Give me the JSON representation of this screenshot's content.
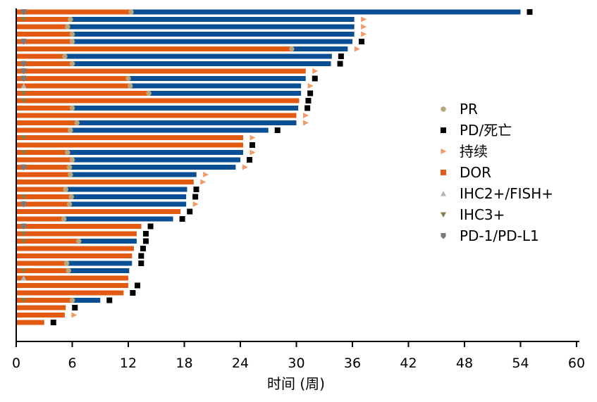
{
  "chart_data": {
    "type": "swimmer",
    "title": "",
    "xlabel": "时间 (周)",
    "ylabel": "",
    "xlim": [
      0,
      60
    ],
    "x_ticks": [
      0,
      6,
      12,
      18,
      24,
      30,
      36,
      42,
      48,
      54,
      60
    ],
    "colors": {
      "orange": "#E35A13",
      "blue": "#0A4E93",
      "pr": "#B8A57A",
      "pd": "#000000",
      "ongoing": "#F29B6A",
      "ihc2": "#B5B5B5",
      "ihc3": "#8A7D4A",
      "pd1": "#7A7A7A"
    },
    "legend": [
      {
        "key": "pr",
        "label": "PR"
      },
      {
        "key": "pd",
        "label": "PD/死亡"
      },
      {
        "key": "ongoing",
        "label": "持续"
      },
      {
        "key": "dor",
        "label": "DOR"
      },
      {
        "key": "ihc2",
        "label": "IHC2+/FISH+"
      },
      {
        "key": "ihc3",
        "label": "IHC3+"
      },
      {
        "key": "pd1",
        "label": "PD-1/PD-L1"
      }
    ],
    "patients": [
      {
        "pr": 12.3,
        "end": 54.0,
        "event": "pd",
        "marker": "pd1"
      },
      {
        "pr": 5.8,
        "end": 36.2,
        "event": "ongoing",
        "marker": "ihc3"
      },
      {
        "pr": 5.5,
        "end": 36.2,
        "event": "ongoing",
        "marker": ""
      },
      {
        "pr": 6.0,
        "end": 36.2,
        "event": "ongoing",
        "marker": ""
      },
      {
        "pr": 6.0,
        "end": 36.0,
        "event": "pd",
        "marker": "pd1"
      },
      {
        "pr": 29.5,
        "end": 35.5,
        "event": "ongoing",
        "marker": ""
      },
      {
        "pr": 5.2,
        "end": 33.8,
        "event": "pd",
        "marker": ""
      },
      {
        "pr": 6.0,
        "end": 33.7,
        "event": "pd",
        "marker": "pd1"
      },
      {
        "pr": 31.0,
        "end": 31.0,
        "event": "ongoing",
        "marker": "pd1"
      },
      {
        "pr": 12.0,
        "end": 31.0,
        "event": "pd",
        "marker": "pd1"
      },
      {
        "pr": 12.2,
        "end": 30.5,
        "event": "ongoing",
        "marker": "ihc2"
      },
      {
        "pr": 14.2,
        "end": 30.5,
        "event": "pd",
        "marker": "ihc3"
      },
      {
        "pr": 30.3,
        "end": 30.3,
        "event": "pd",
        "marker": "ihc3"
      },
      {
        "pr": 6.0,
        "end": 30.2,
        "event": "pd",
        "marker": ""
      },
      {
        "pr": 30.0,
        "end": 30.0,
        "event": "ongoing",
        "marker": ""
      },
      {
        "pr": 6.5,
        "end": 30.0,
        "event": "ongoing",
        "marker": ""
      },
      {
        "pr": 5.8,
        "end": 27.0,
        "event": "pd",
        "marker": ""
      },
      {
        "pr": 24.3,
        "end": 24.3,
        "event": "ongoing",
        "marker": "ihc3"
      },
      {
        "pr": 24.3,
        "end": 24.3,
        "event": "pd",
        "marker": ""
      },
      {
        "pr": 5.5,
        "end": 24.3,
        "event": "ongoing",
        "marker": "ihc3"
      },
      {
        "pr": 6.0,
        "end": 24.0,
        "event": "pd",
        "marker": ""
      },
      {
        "pr": 5.7,
        "end": 23.5,
        "event": "ongoing",
        "marker": "pd1"
      },
      {
        "pr": 5.8,
        "end": 19.3,
        "event": "ongoing",
        "marker": ""
      },
      {
        "pr": 19.0,
        "end": 19.0,
        "event": "ongoing",
        "marker": ""
      },
      {
        "pr": 5.3,
        "end": 18.3,
        "event": "pd",
        "marker": ""
      },
      {
        "pr": 5.9,
        "end": 18.2,
        "event": "pd",
        "marker": "ihc3"
      },
      {
        "pr": 5.7,
        "end": 18.2,
        "event": "ongoing",
        "marker": "pd1"
      },
      {
        "pr": 17.6,
        "end": 17.6,
        "event": "pd",
        "marker": ""
      },
      {
        "pr": 5.1,
        "end": 16.8,
        "event": "pd",
        "marker": ""
      },
      {
        "pr": 13.4,
        "end": 13.4,
        "event": "pd",
        "marker": "pd1"
      },
      {
        "pr": 12.9,
        "end": 12.9,
        "event": "pd",
        "marker": "ihc3"
      },
      {
        "pr": 6.7,
        "end": 12.9,
        "event": "pd",
        "marker": "ihc3"
      },
      {
        "pr": 12.6,
        "end": 12.6,
        "event": "pd",
        "marker": ""
      },
      {
        "pr": 12.4,
        "end": 12.4,
        "event": "pd",
        "marker": ""
      },
      {
        "pr": 5.4,
        "end": 12.4,
        "event": "pd",
        "marker": ""
      },
      {
        "pr": 5.6,
        "end": 12.1,
        "event": "",
        "marker": "ihc3"
      },
      {
        "pr": 12.0,
        "end": 12.0,
        "event": "",
        "marker": "ihc2"
      },
      {
        "pr": 12.0,
        "end": 12.0,
        "event": "pd",
        "marker": ""
      },
      {
        "pr": 11.5,
        "end": 11.5,
        "event": "pd",
        "marker": ""
      },
      {
        "pr": 6.0,
        "end": 9.0,
        "event": "pd",
        "marker": "ihc3"
      },
      {
        "pr": 5.3,
        "end": 5.3,
        "event": "pd",
        "marker": ""
      },
      {
        "pr": 5.2,
        "end": 5.2,
        "event": "ongoing",
        "marker": ""
      },
      {
        "pr": 3.0,
        "end": 3.0,
        "event": "pd",
        "marker": ""
      }
    ]
  }
}
